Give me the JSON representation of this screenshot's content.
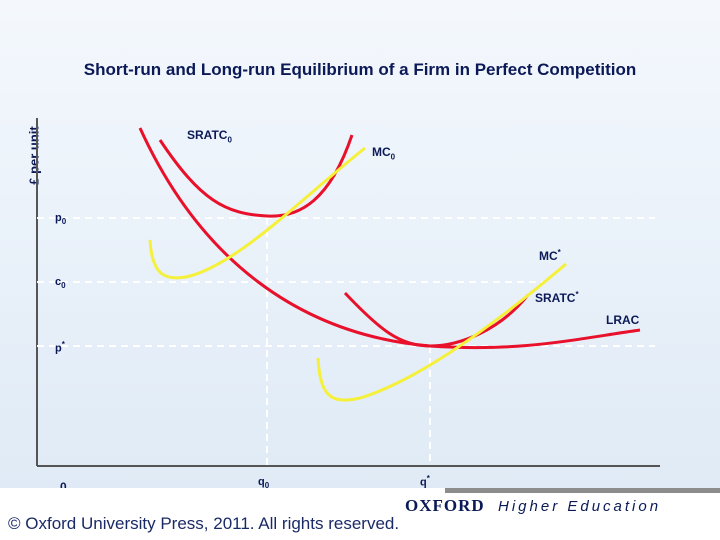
{
  "chart_data": {
    "type": "line",
    "title": "Short-run and Long-run Equilibrium of a Firm in Perfect Competition",
    "ylabel": "£ per unit",
    "xlabel": "",
    "y_ticks": {
      "p0": "p",
      "p0_sub": "0",
      "c0": "c",
      "c0_sub": "0",
      "pstar": "p",
      "pstar_sup": "*",
      "origin": "0"
    },
    "x_ticks": {
      "q0": "q",
      "q0_sub": "0",
      "qstar": "q",
      "qstar_sup": "*"
    },
    "curve_labels": {
      "sratc0": "SRATC",
      "sratc0_sub": "0",
      "mc0": "MC",
      "mc0_sub": "0",
      "mcstar": "MC",
      "mcstar_sup": "*",
      "sratcstar": "SRATC",
      "sratcstar_sup": "*",
      "lrac": "LRAC"
    },
    "series": [
      {
        "key": "sratc0",
        "color": "#e8102a"
      },
      {
        "key": "mc0",
        "color": "#f5f03a"
      },
      {
        "key": "sratcstar",
        "color": "#e8102a"
      },
      {
        "key": "mcstar",
        "color": "#f5f03a"
      },
      {
        "key": "lrac",
        "color": "#e8102a"
      }
    ],
    "grid": false
  },
  "footer": {
    "copyright": "© Oxford University Press, 2011. All rights reserved.",
    "publisher": "OXFORD",
    "division": "Higher Education"
  }
}
